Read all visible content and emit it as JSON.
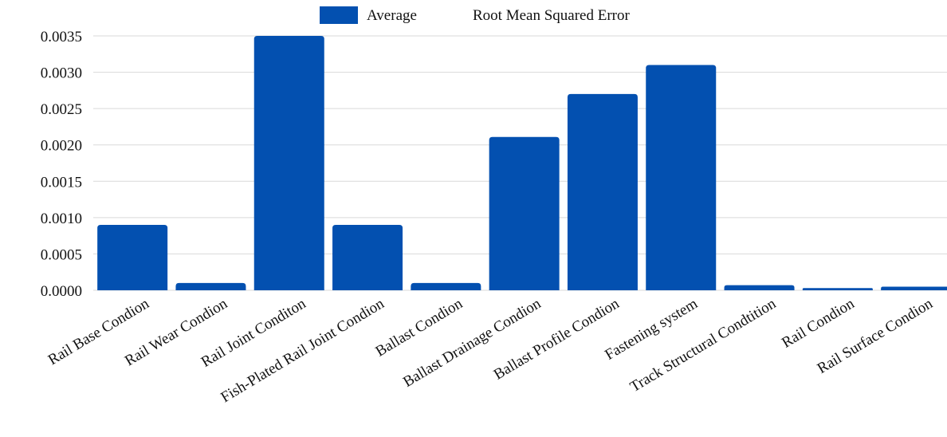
{
  "chart_data": {
    "type": "bar",
    "categories": [
      "Rail Base Condion",
      "Rail Wear Condion",
      "Rail Joint Conditon",
      "Fish-Plated Rail Joint Condion",
      "Ballast Condion",
      "Ballast Drainage Condion",
      "Ballast Profile Condion",
      "Fastening system",
      "Track Structural Condtition",
      "Rail Condion",
      "Rail Surface Condion"
    ],
    "series": [
      {
        "name": "Average",
        "values": [
          0.0009,
          0.0001,
          0.0035,
          0.0009,
          0.0001,
          0.00211,
          0.0027,
          0.0031,
          7e-05,
          3e-05,
          5e-05
        ]
      }
    ],
    "legend_extra_text": "Root Mean Squared Error",
    "legend_position": "top-center",
    "title": "",
    "xlabel": "",
    "ylabel": "",
    "ylim": [
      0,
      0.0035
    ],
    "yticks": [
      "0.0000",
      "0.0005",
      "0.0010",
      "0.0015",
      "0.0020",
      "0.0025",
      "0.0030",
      "0.0035"
    ],
    "grid": true,
    "colors": {
      "bar": "#0350b0",
      "grid": "#d9d9d9",
      "text": "#111111"
    }
  }
}
